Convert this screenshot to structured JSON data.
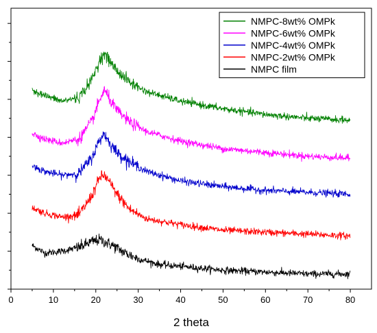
{
  "chart_data": {
    "type": "line",
    "title": "",
    "xlabel": "2 theta",
    "ylabel": "",
    "xlim": [
      0,
      85
    ],
    "ylim": [
      0,
      7.4
    ],
    "x_ticks": [
      0,
      10,
      20,
      30,
      40,
      50,
      60,
      70,
      80
    ],
    "y_tick_labels_shown": false,
    "grid": false,
    "legend_position": "top-right",
    "series": [
      {
        "name": "NMPC-8wt% OMPk",
        "color": "#008000",
        "offset": 4.0,
        "x": [
          5,
          8,
          12,
          16,
          19,
          21,
          22,
          23,
          25,
          28,
          32,
          40,
          50,
          60,
          70,
          80
        ],
        "values": [
          5.25,
          5.1,
          4.95,
          5.05,
          5.5,
          6.05,
          6.2,
          6.05,
          5.75,
          5.45,
          5.2,
          4.95,
          4.75,
          4.6,
          4.5,
          4.45
        ]
      },
      {
        "name": "NMPC-6wt% OMPk",
        "color": "#ff00ff",
        "offset": 3.0,
        "x": [
          5,
          8,
          12,
          16,
          19,
          21,
          22,
          23,
          25,
          28,
          32,
          40,
          50,
          60,
          70,
          80
        ],
        "values": [
          4.1,
          3.95,
          3.85,
          3.95,
          4.4,
          5.0,
          5.25,
          5.05,
          4.7,
          4.4,
          4.15,
          3.9,
          3.7,
          3.6,
          3.5,
          3.45
        ]
      },
      {
        "name": "NMPC-4wt% OMPk",
        "color": "#0000cc",
        "offset": 2.0,
        "x": [
          5,
          8,
          12,
          16,
          19,
          21,
          22,
          23,
          25,
          28,
          32,
          40,
          50,
          60,
          70,
          80
        ],
        "values": [
          3.25,
          3.1,
          3.0,
          3.05,
          3.45,
          3.95,
          4.1,
          3.9,
          3.6,
          3.35,
          3.1,
          2.85,
          2.7,
          2.6,
          2.55,
          2.5
        ]
      },
      {
        "name": "NMPC-2wt% OMPk",
        "color": "#ff0000",
        "offset": 1.0,
        "x": [
          5,
          8,
          12,
          16,
          19,
          21,
          22,
          23,
          25,
          28,
          32,
          40,
          50,
          60,
          70,
          80
        ],
        "values": [
          2.15,
          2.0,
          1.9,
          1.95,
          2.45,
          2.95,
          3.0,
          2.85,
          2.5,
          2.1,
          1.85,
          1.7,
          1.55,
          1.5,
          1.45,
          1.4
        ]
      },
      {
        "name": "NMPC film",
        "color": "#000000",
        "offset": 0.0,
        "x": [
          5,
          8,
          12,
          16,
          19,
          21,
          22,
          24,
          27,
          30,
          35,
          40,
          50,
          60,
          70,
          80
        ],
        "values": [
          1.15,
          0.95,
          1.0,
          1.1,
          1.25,
          1.3,
          1.25,
          1.15,
          0.95,
          0.8,
          0.65,
          0.6,
          0.5,
          0.45,
          0.4,
          0.4
        ]
      }
    ]
  }
}
